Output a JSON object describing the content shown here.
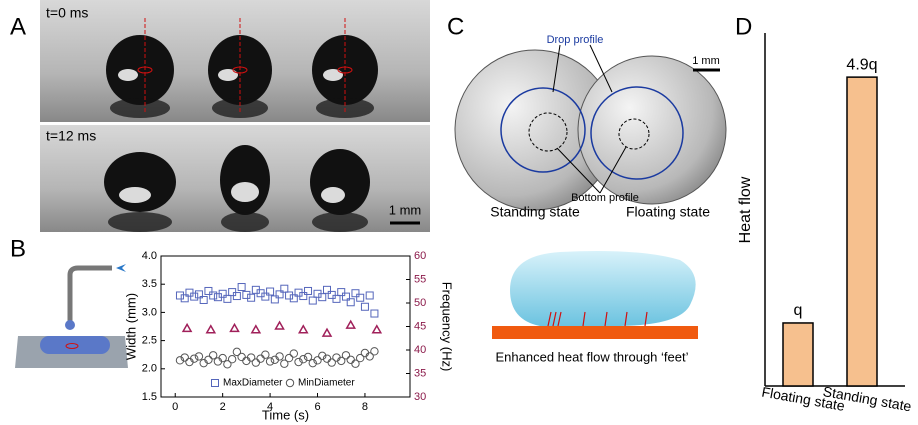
{
  "panels": {
    "labels": [
      "A",
      "B",
      "C",
      "D"
    ],
    "a_top": "t=0 ms",
    "a_bottom": "t=12 ms",
    "a_scale": "1 mm",
    "c_scale": "1 mm",
    "c_drop": "Drop profile",
    "c_bottom": "Bottom profile",
    "c_standing": "Standing state",
    "c_floating": "Floating state",
    "c_caption": "Enhanced heat flow through ‘feet’"
  },
  "chart_data": [
    {
      "type": "scatter",
      "xlabel": "Time (s)",
      "ylabel": "Width (mm)",
      "y2label": "Frequency (Hz)",
      "xlim": [
        -0.6,
        9.9
      ],
      "xticks": [
        0,
        2,
        4,
        6,
        8
      ],
      "ylim": [
        1.5,
        4.0
      ],
      "yticks": [
        1.5,
        {
          "value": 2,
          "label": "2.0"
        },
        2.5,
        {
          "value": 3,
          "label": "3.0"
        },
        3.5,
        {
          "value": 4,
          "label": "4.0"
        }
      ],
      "y2lim": [
        30,
        60
      ],
      "y2ticks": [
        30,
        35,
        40,
        45,
        50,
        55,
        60
      ],
      "legend": "lower center",
      "series": [
        {
          "name": "MaxDiameter",
          "color": "#5566bb",
          "marker": "square",
          "x": [
            0.2,
            0.4,
            0.6,
            0.8,
            1.0,
            1.2,
            1.4,
            1.6,
            1.8,
            2.0,
            2.2,
            2.4,
            2.6,
            2.8,
            3.0,
            3.2,
            3.4,
            3.6,
            3.8,
            4.0,
            4.2,
            4.4,
            4.6,
            4.8,
            5.0,
            5.2,
            5.4,
            5.6,
            5.8,
            6.0,
            6.2,
            6.4,
            6.6,
            6.8,
            7.0,
            7.2,
            7.4,
            7.6,
            7.8,
            8.0,
            8.2,
            8.4
          ],
          "values": [
            3.3,
            3.25,
            3.35,
            3.28,
            3.32,
            3.22,
            3.38,
            3.3,
            3.27,
            3.33,
            3.24,
            3.36,
            3.29,
            3.45,
            3.31,
            3.26,
            3.4,
            3.34,
            3.28,
            3.37,
            3.23,
            3.32,
            3.42,
            3.3,
            3.25,
            3.35,
            3.29,
            3.38,
            3.21,
            3.33,
            3.27,
            3.4,
            3.31,
            3.24,
            3.36,
            3.28,
            3.18,
            3.34,
            3.26,
            3.1,
            3.3,
            2.98
          ]
        },
        {
          "name": "MinDiameter",
          "color": "#555555",
          "marker": "circle",
          "x": [
            0.2,
            0.4,
            0.6,
            0.8,
            1.0,
            1.2,
            1.4,
            1.6,
            1.8,
            2.0,
            2.2,
            2.4,
            2.6,
            2.8,
            3.0,
            3.2,
            3.4,
            3.6,
            3.8,
            4.0,
            4.2,
            4.4,
            4.6,
            4.8,
            5.0,
            5.2,
            5.4,
            5.6,
            5.8,
            6.0,
            6.2,
            6.4,
            6.6,
            6.8,
            7.0,
            7.2,
            7.4,
            7.6,
            7.8,
            8.0,
            8.2,
            8.4
          ],
          "values": [
            2.15,
            2.2,
            2.12,
            2.18,
            2.22,
            2.1,
            2.16,
            2.24,
            2.13,
            2.19,
            2.08,
            2.17,
            2.3,
            2.21,
            2.14,
            2.2,
            2.11,
            2.18,
            2.25,
            2.13,
            2.16,
            2.22,
            2.09,
            2.19,
            2.27,
            2.12,
            2.17,
            2.21,
            2.1,
            2.15,
            2.23,
            2.18,
            2.11,
            2.2,
            2.14,
            2.24,
            2.16,
            2.09,
            2.19,
            2.28,
            2.22,
            2.31
          ]
        },
        {
          "color": "#a0205a",
          "marker": "triangle",
          "axis": "y2",
          "x": [
            0.5,
            1.5,
            2.5,
            3.4,
            4.4,
            5.4,
            6.4,
            7.4,
            8.5
          ],
          "values": [
            44.6,
            44.3,
            44.6,
            44.3,
            45.1,
            44.3,
            43.6,
            45.3,
            44.3
          ]
        }
      ]
    },
    {
      "type": "bar",
      "ylabel": "Heat flow",
      "categories": [
        "Floating state",
        "Standing state"
      ],
      "values": [
        1,
        4.9
      ],
      "value_labels": [
        "q",
        "4.9q"
      ],
      "color": "#f6c08e",
      "ylim": [
        0,
        5.6
      ]
    }
  ]
}
